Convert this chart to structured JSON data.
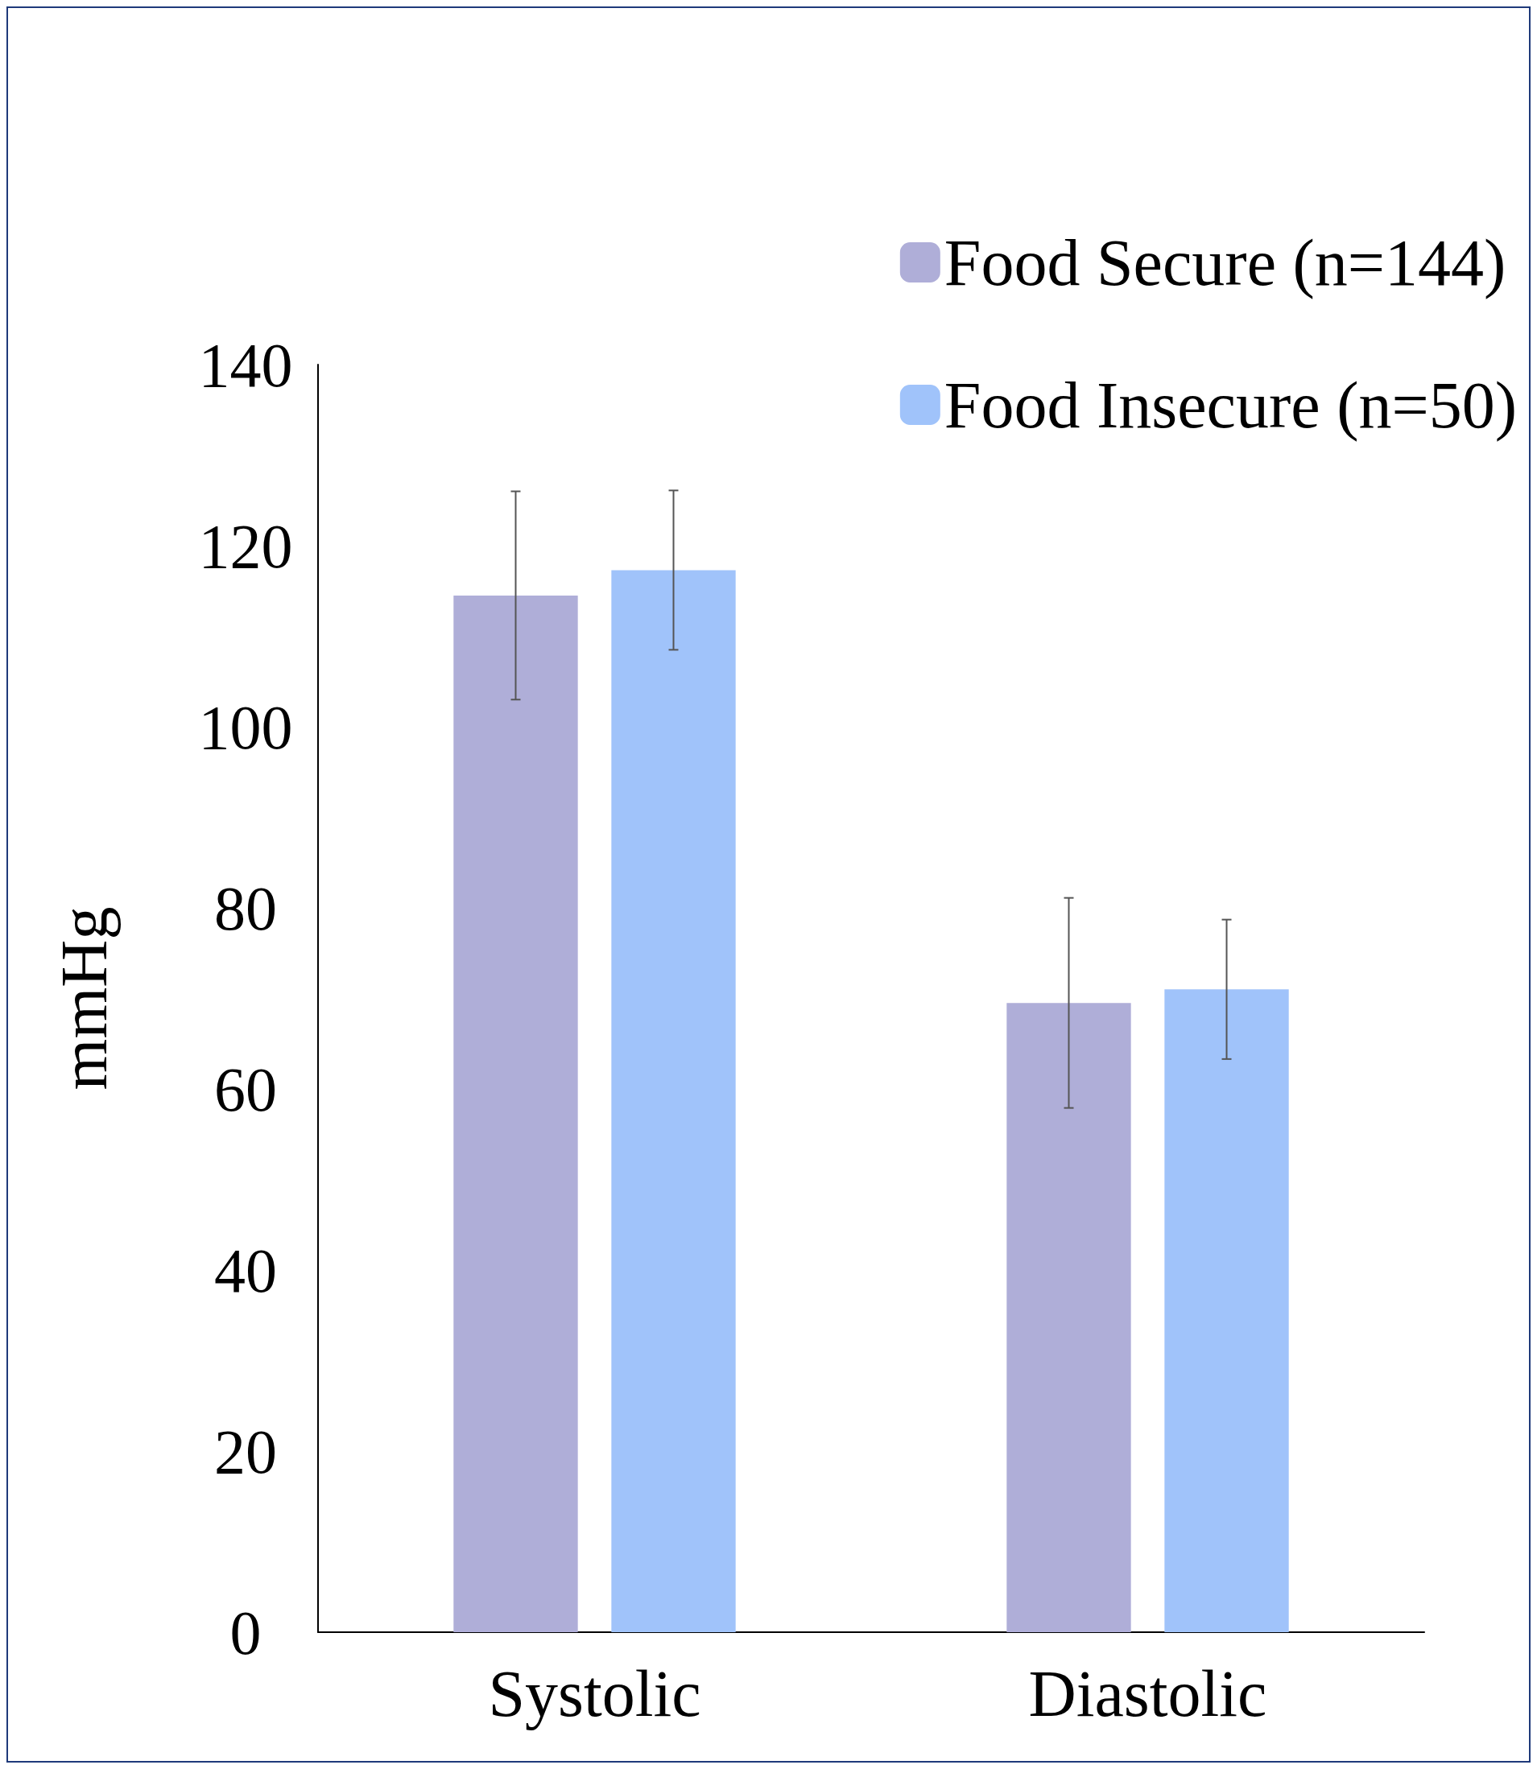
{
  "chart_data": {
    "type": "bar",
    "ylabel": "mmHg",
    "categories": [
      "Systolic",
      "Diastolic"
    ],
    "series": [
      {
        "name": "Food Secure (n=144)",
        "color": "#afaed8",
        "values": [
          114.5,
          69.5
        ],
        "errors": [
          11.5,
          11.6
        ]
      },
      {
        "name": "Food Insecure (n=50)",
        "color": "#a0c3fa",
        "values": [
          117.3,
          71.0
        ],
        "errors": [
          8.8,
          7.7
        ]
      }
    ],
    "ylim": [
      0,
      140
    ],
    "yticks": [
      0,
      20,
      40,
      60,
      80,
      100,
      120,
      140
    ],
    "grid": false,
    "legend": "top right"
  }
}
